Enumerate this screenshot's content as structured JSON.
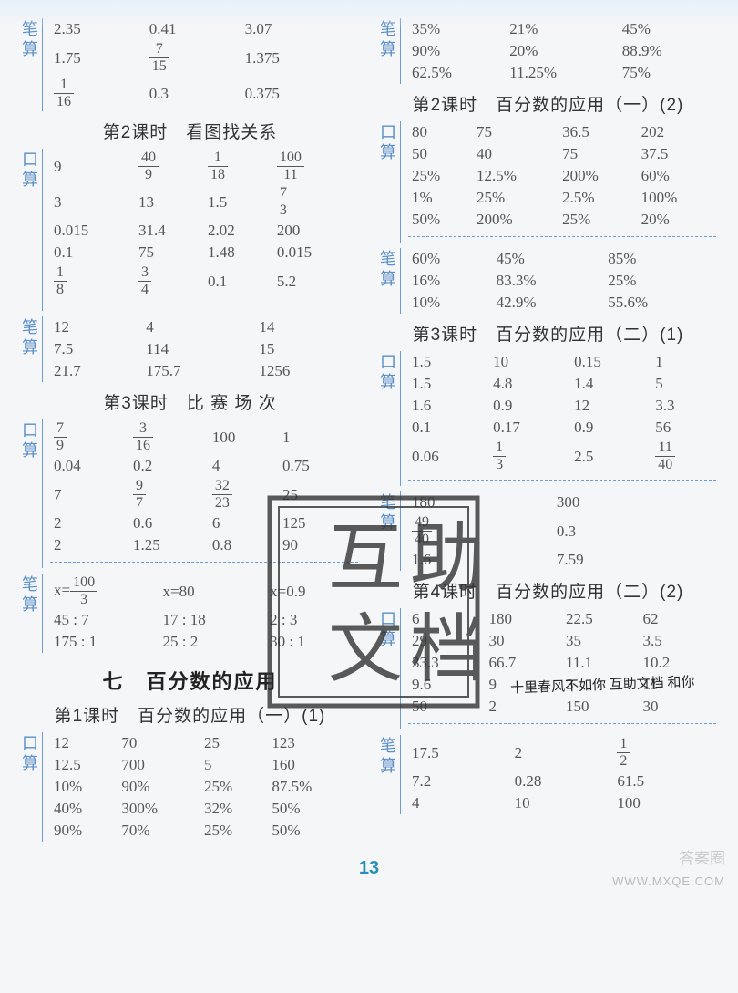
{
  "colors": {
    "label_color": "#5a8fc7",
    "border_color": "#6b9bd1",
    "text_color": "#555555",
    "heading_color": "#333333",
    "pagenum_color": "#2a8fb8",
    "background": "#f5f6f8"
  },
  "labels": {
    "bi": "笔",
    "suan": "算",
    "kou": "口"
  },
  "page_number": "13",
  "watermark1": "答案圈",
  "watermark2": "WWW.MXQE.COM",
  "stamp_text": [
    "互",
    "助",
    "文",
    "档"
  ],
  "handwriting": "十里春风不如你 互助文档 和你",
  "left": {
    "b1": {
      "rows": [
        [
          "2.35",
          "0.41",
          "3.07"
        ],
        [
          "1.75",
          "<frac>7|15</frac>",
          "1.375"
        ],
        [
          "<frac>1|16</frac>",
          "0.3",
          "0.375"
        ]
      ]
    },
    "h2": "第2课时　看图找关系",
    "k1": {
      "rows": [
        [
          "9",
          "<frac>40|9</frac>",
          "<frac>1|18</frac>",
          "<frac>100|11</frac>"
        ],
        [
          "3",
          "13",
          "1.5",
          "<frac>7|3</frac>"
        ],
        [
          "0.015",
          "31.4",
          "2.02",
          "200"
        ],
        [
          "0.1",
          "75",
          "1.48",
          "0.015"
        ],
        [
          "<frac>1|8</frac>",
          "<frac>3|4</frac>",
          "0.1",
          "5.2"
        ]
      ]
    },
    "b2": {
      "rows": [
        [
          "12",
          "4",
          "14"
        ],
        [
          "7.5",
          "114",
          "15"
        ],
        [
          "21.7",
          "175.7",
          "1256"
        ]
      ]
    },
    "h3": "第3课时　比 赛 场 次",
    "k2": {
      "rows": [
        [
          "<frac>7|9</frac>",
          "<frac>3|16</frac>",
          "100",
          "1"
        ],
        [
          "0.04",
          "0.2",
          "4",
          "0.75"
        ],
        [
          "7",
          "<frac>9|7</frac>",
          "<frac>32|23</frac>",
          "25"
        ],
        [
          "2",
          "0.6",
          "6",
          "125"
        ],
        [
          "2",
          "1.25",
          "0.8",
          "90"
        ]
      ]
    },
    "b3": {
      "rows": [
        [
          "x=<frac>100|3</frac>",
          "x=80",
          "x=0.9"
        ],
        [
          "45 : 7",
          "17 : 18",
          "2 : 3"
        ],
        [
          "175 : 1",
          "25 : 2",
          "30 : 1"
        ]
      ]
    },
    "big": "七　百分数的应用",
    "h4": "第1课时　百分数的应用（一）(1)",
    "k3": {
      "rows": [
        [
          "12",
          "70",
          "25",
          "123"
        ],
        [
          "12.5",
          "700",
          "5",
          "160"
        ],
        [
          "10%",
          "90%",
          "25%",
          "87.5%"
        ],
        [
          "40%",
          "300%",
          "32%",
          "50%"
        ],
        [
          "90%",
          "70%",
          "25%",
          "50%"
        ]
      ]
    }
  },
  "right": {
    "b1": {
      "rows": [
        [
          "35%",
          "21%",
          "45%"
        ],
        [
          "90%",
          "20%",
          "88.9%"
        ],
        [
          "62.5%",
          "11.25%",
          "75%"
        ]
      ]
    },
    "h2": "第2课时　百分数的应用（一）(2)",
    "k1": {
      "rows": [
        [
          "80",
          "75",
          "36.5",
          "202"
        ],
        [
          "50",
          "40",
          "75",
          "37.5"
        ],
        [
          "25%",
          "12.5%",
          "200%",
          "60%"
        ],
        [
          "1%",
          "25%",
          "2.5%",
          "100%"
        ],
        [
          "50%",
          "200%",
          "25%",
          "20%"
        ]
      ]
    },
    "b2": {
      "rows": [
        [
          "60%",
          "45%",
          "85%"
        ],
        [
          "16%",
          "83.3%",
          "25%"
        ],
        [
          "10%",
          "42.9%",
          "55.6%"
        ]
      ]
    },
    "h3": "第3课时　百分数的应用（二）(1)",
    "k2": {
      "rows": [
        [
          "1.5",
          "10",
          "0.15",
          "1"
        ],
        [
          "1.5",
          "4.8",
          "1.4",
          "5"
        ],
        [
          "1.6",
          "0.9",
          "12",
          "3.3"
        ],
        [
          "0.1",
          "0.17",
          "0.9",
          "56"
        ],
        [
          "0.06",
          "<frac>1|3</frac>",
          "2.5",
          "<frac>11|40</frac>"
        ]
      ]
    },
    "b3": {
      "rows": [
        [
          "180",
          "300"
        ],
        [
          "<frac>49|40</frac>",
          "0.3"
        ],
        [
          "1.6",
          "7.59"
        ]
      ]
    },
    "h4": "第4课时　百分数的应用（二）(2)",
    "k3": {
      "rows": [
        [
          "6",
          "180",
          "22.5",
          "62"
        ],
        [
          "29",
          "30",
          "35",
          "3.5"
        ],
        [
          "33.3",
          "66.7",
          "11.1",
          "10.2"
        ],
        [
          "9.6",
          "9",
          "3",
          "11"
        ],
        [
          "50",
          "2",
          "150",
          "30"
        ]
      ]
    },
    "b4": {
      "rows": [
        [
          "17.5",
          "2",
          "<frac>1|2</frac>"
        ],
        [
          "7.2",
          "0.28",
          "61.5"
        ],
        [
          "4",
          "10",
          "100"
        ]
      ]
    }
  }
}
